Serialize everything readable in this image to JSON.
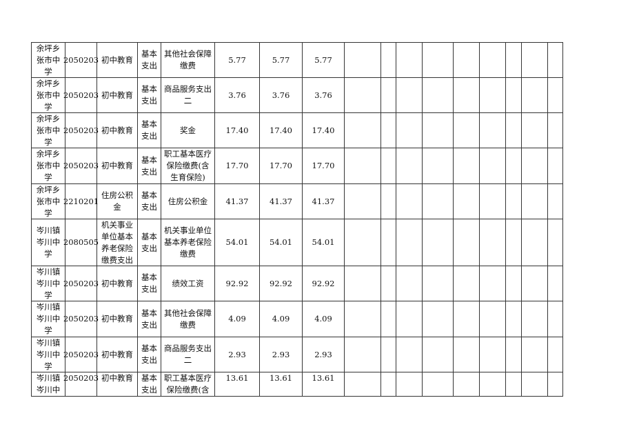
{
  "rows": [
    {
      "unit": "余坪乡\n张市中\n学",
      "code": "2050203",
      "subject": "初中教育",
      "type": "基本\n支出",
      "item": "其他社会保障\n缴费",
      "v1": "5.77",
      "v2": "5.77",
      "v3": "5.77"
    },
    {
      "unit": "余坪乡\n张市中\n学",
      "code": "2050203",
      "subject": "初中教育",
      "type": "基本\n支出",
      "item": "商品服务支出\n二",
      "v1": "3.76",
      "v2": "3.76",
      "v3": "3.76"
    },
    {
      "unit": "余坪乡\n张市中\n学",
      "code": "2050203",
      "subject": "初中教育",
      "type": "基本\n支出",
      "item": "奖金",
      "v1": "17.40",
      "v2": "17.40",
      "v3": "17.40"
    },
    {
      "unit": "余坪乡\n张市中\n学",
      "code": "2050203",
      "subject": "初中教育",
      "type": "基本\n支出",
      "item": "职工基本医疗\n保险缴费(含\n生育保险)",
      "v1": "17.70",
      "v2": "17.70",
      "v3": "17.70"
    },
    {
      "unit": "余坪乡\n张市中\n学",
      "code": "2210201",
      "subject": "住房公积\n金",
      "type": "基本\n支出",
      "item": "住房公积金",
      "v1": "41.37",
      "v2": "41.37",
      "v3": "41.37"
    },
    {
      "unit": "岑川镇\n岑川中\n学",
      "code": "2080505",
      "subject": "机关事业\n单位基本\n养老保险\n缴费支出",
      "type": "基本\n支出",
      "item": "机关事业单位\n基本养老保险\n缴费",
      "v1": "54.01",
      "v2": "54.01",
      "v3": "54.01"
    },
    {
      "unit": "岑川镇\n岑川中\n学",
      "code": "2050203",
      "subject": "初中教育",
      "type": "基本\n支出",
      "item": "绩效工资",
      "v1": "92.92",
      "v2": "92.92",
      "v3": "92.92"
    },
    {
      "unit": "岑川镇\n岑川中\n学",
      "code": "2050203",
      "subject": "初中教育",
      "type": "基本\n支出",
      "item": "其他社会保障\n缴费",
      "v1": "4.09",
      "v2": "4.09",
      "v3": "4.09"
    },
    {
      "unit": "岑川镇\n岑川中\n学",
      "code": "2050203",
      "subject": "初中教育",
      "type": "基本\n支出",
      "item": "商品服务支出\n二",
      "v1": "2.93",
      "v2": "2.93",
      "v3": "2.93"
    },
    {
      "unit": "岑川镇\n岑川中",
      "code": "2050203",
      "subject": "初中教育",
      "type": "基本\n支出",
      "item": "职工基本医疗\n保险缴费(含",
      "v1": "13.61",
      "v2": "13.61",
      "v3": "13.61"
    }
  ]
}
